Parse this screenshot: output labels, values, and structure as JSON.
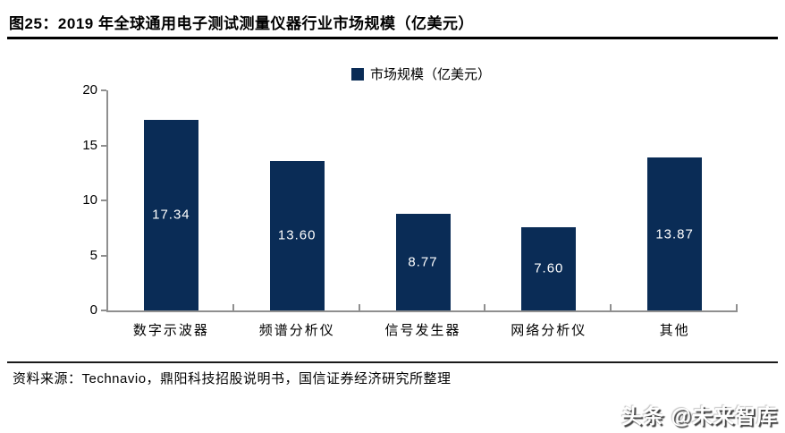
{
  "header": {
    "title": "图25：2019 年全球通用电子测试测量仪器行业市场规模（亿美元）"
  },
  "chart_data": {
    "type": "bar",
    "title": "2019 年全球通用电子测试测量仪器行业市场规模（亿美元）",
    "legend": [
      "市场规模（亿美元）"
    ],
    "legend_position": "top",
    "categories": [
      "数字示波器",
      "频谱分析仪",
      "信号发生器",
      "网络分析仪",
      "其他"
    ],
    "values": [
      17.34,
      13.6,
      8.77,
      7.6,
      13.87
    ],
    "value_labels": [
      "17.34",
      "13.60",
      "8.77",
      "7.60",
      "13.87"
    ],
    "xlabel": "",
    "ylabel": "",
    "ylim": [
      0,
      20
    ],
    "yticks": [
      0,
      5,
      10,
      15,
      20
    ],
    "grid": false,
    "bar_color": "#0a2c56",
    "axis_color": "#8f8f8f",
    "value_label_color": "#ffffff"
  },
  "footer": {
    "source": "资料来源：Technavio，鼎阳科技招股说明书，国信证券经济研究所整理"
  },
  "watermark": {
    "text": "头条 @未来智库"
  }
}
